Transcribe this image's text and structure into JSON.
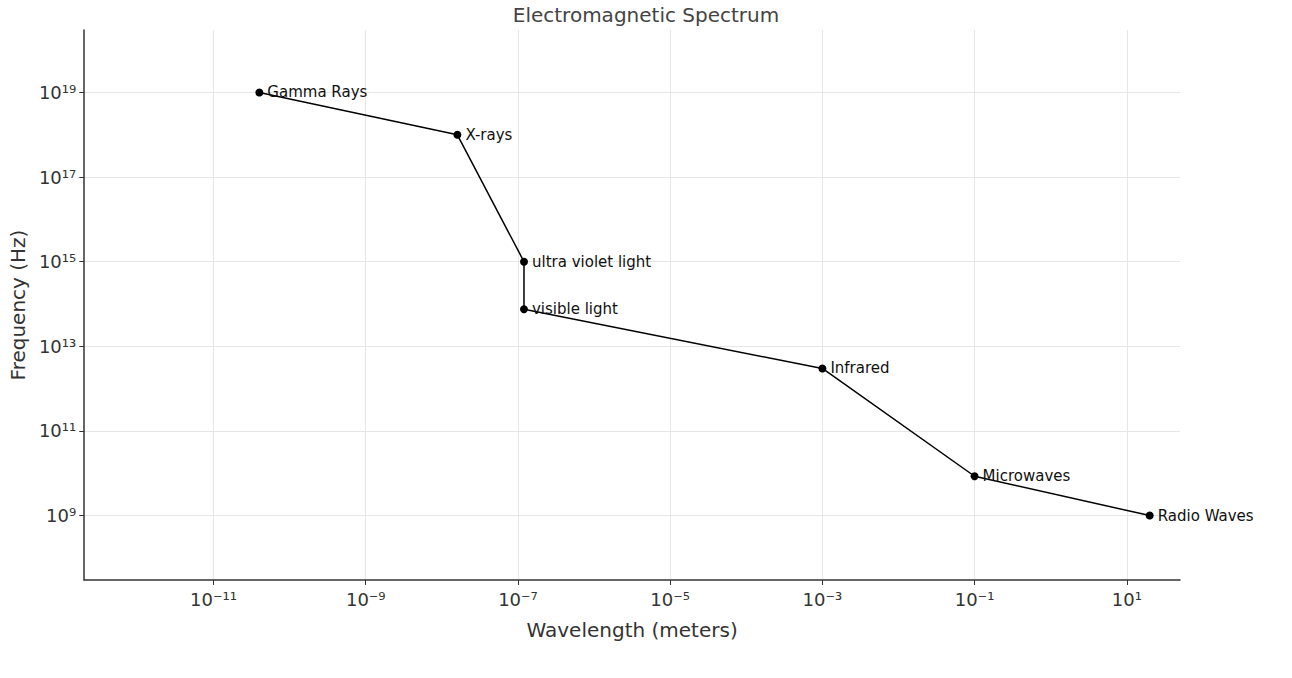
{
  "chart_data": {
    "type": "line",
    "title": "Electromagnetic Spectrum",
    "x_label": "Wavelength (meters)",
    "y_label": "Frequency (Hz)",
    "x": [
      4e-11,
      1.6e-08,
      1.2e-07,
      1.2e-07,
      0.001,
      0.1,
      20
    ],
    "values": [
      1e+19,
      1e+18,
      1000000000000000.0,
      75000000000000.0,
      3000000000000.0,
      8500000000.0,
      1000000000.0
    ],
    "labels": [
      "Gamma Rays",
      "X-rays",
      "ultra violet light",
      "visible light",
      "Infrared",
      "Microwaves",
      "Radio Waves"
    ],
    "color": "#000000",
    "marker": "circle",
    "log": true,
    "grid": true,
    "xlim": [
      2e-13,
      50
    ],
    "ylim": [
      30000000.0,
      3e+20
    ],
    "xticks": [
      {
        "value": 1e-11,
        "label": "10⁻¹¹"
      },
      {
        "value": 1e-09,
        "label": "10⁻⁹"
      },
      {
        "value": 1e-07,
        "label": "10⁻⁷"
      },
      {
        "value": 1e-05,
        "label": "10⁻⁵"
      },
      {
        "value": 0.001,
        "label": "10⁻³"
      },
      {
        "value": 0.1,
        "label": "10⁻¹"
      },
      {
        "value": 10,
        "label": "10¹"
      }
    ],
    "yticks": [
      {
        "value": 1000000000.0,
        "label": "10⁹"
      },
      {
        "value": 100000000000.0,
        "label": "10¹¹"
      },
      {
        "value": 10000000000000.0,
        "label": "10¹³"
      },
      {
        "value": 1000000000000000.0,
        "label": "10¹⁵"
      },
      {
        "value": 1e+17,
        "label": "10¹⁷"
      },
      {
        "value": 1e+19,
        "label": "10¹⁹"
      }
    ]
  }
}
